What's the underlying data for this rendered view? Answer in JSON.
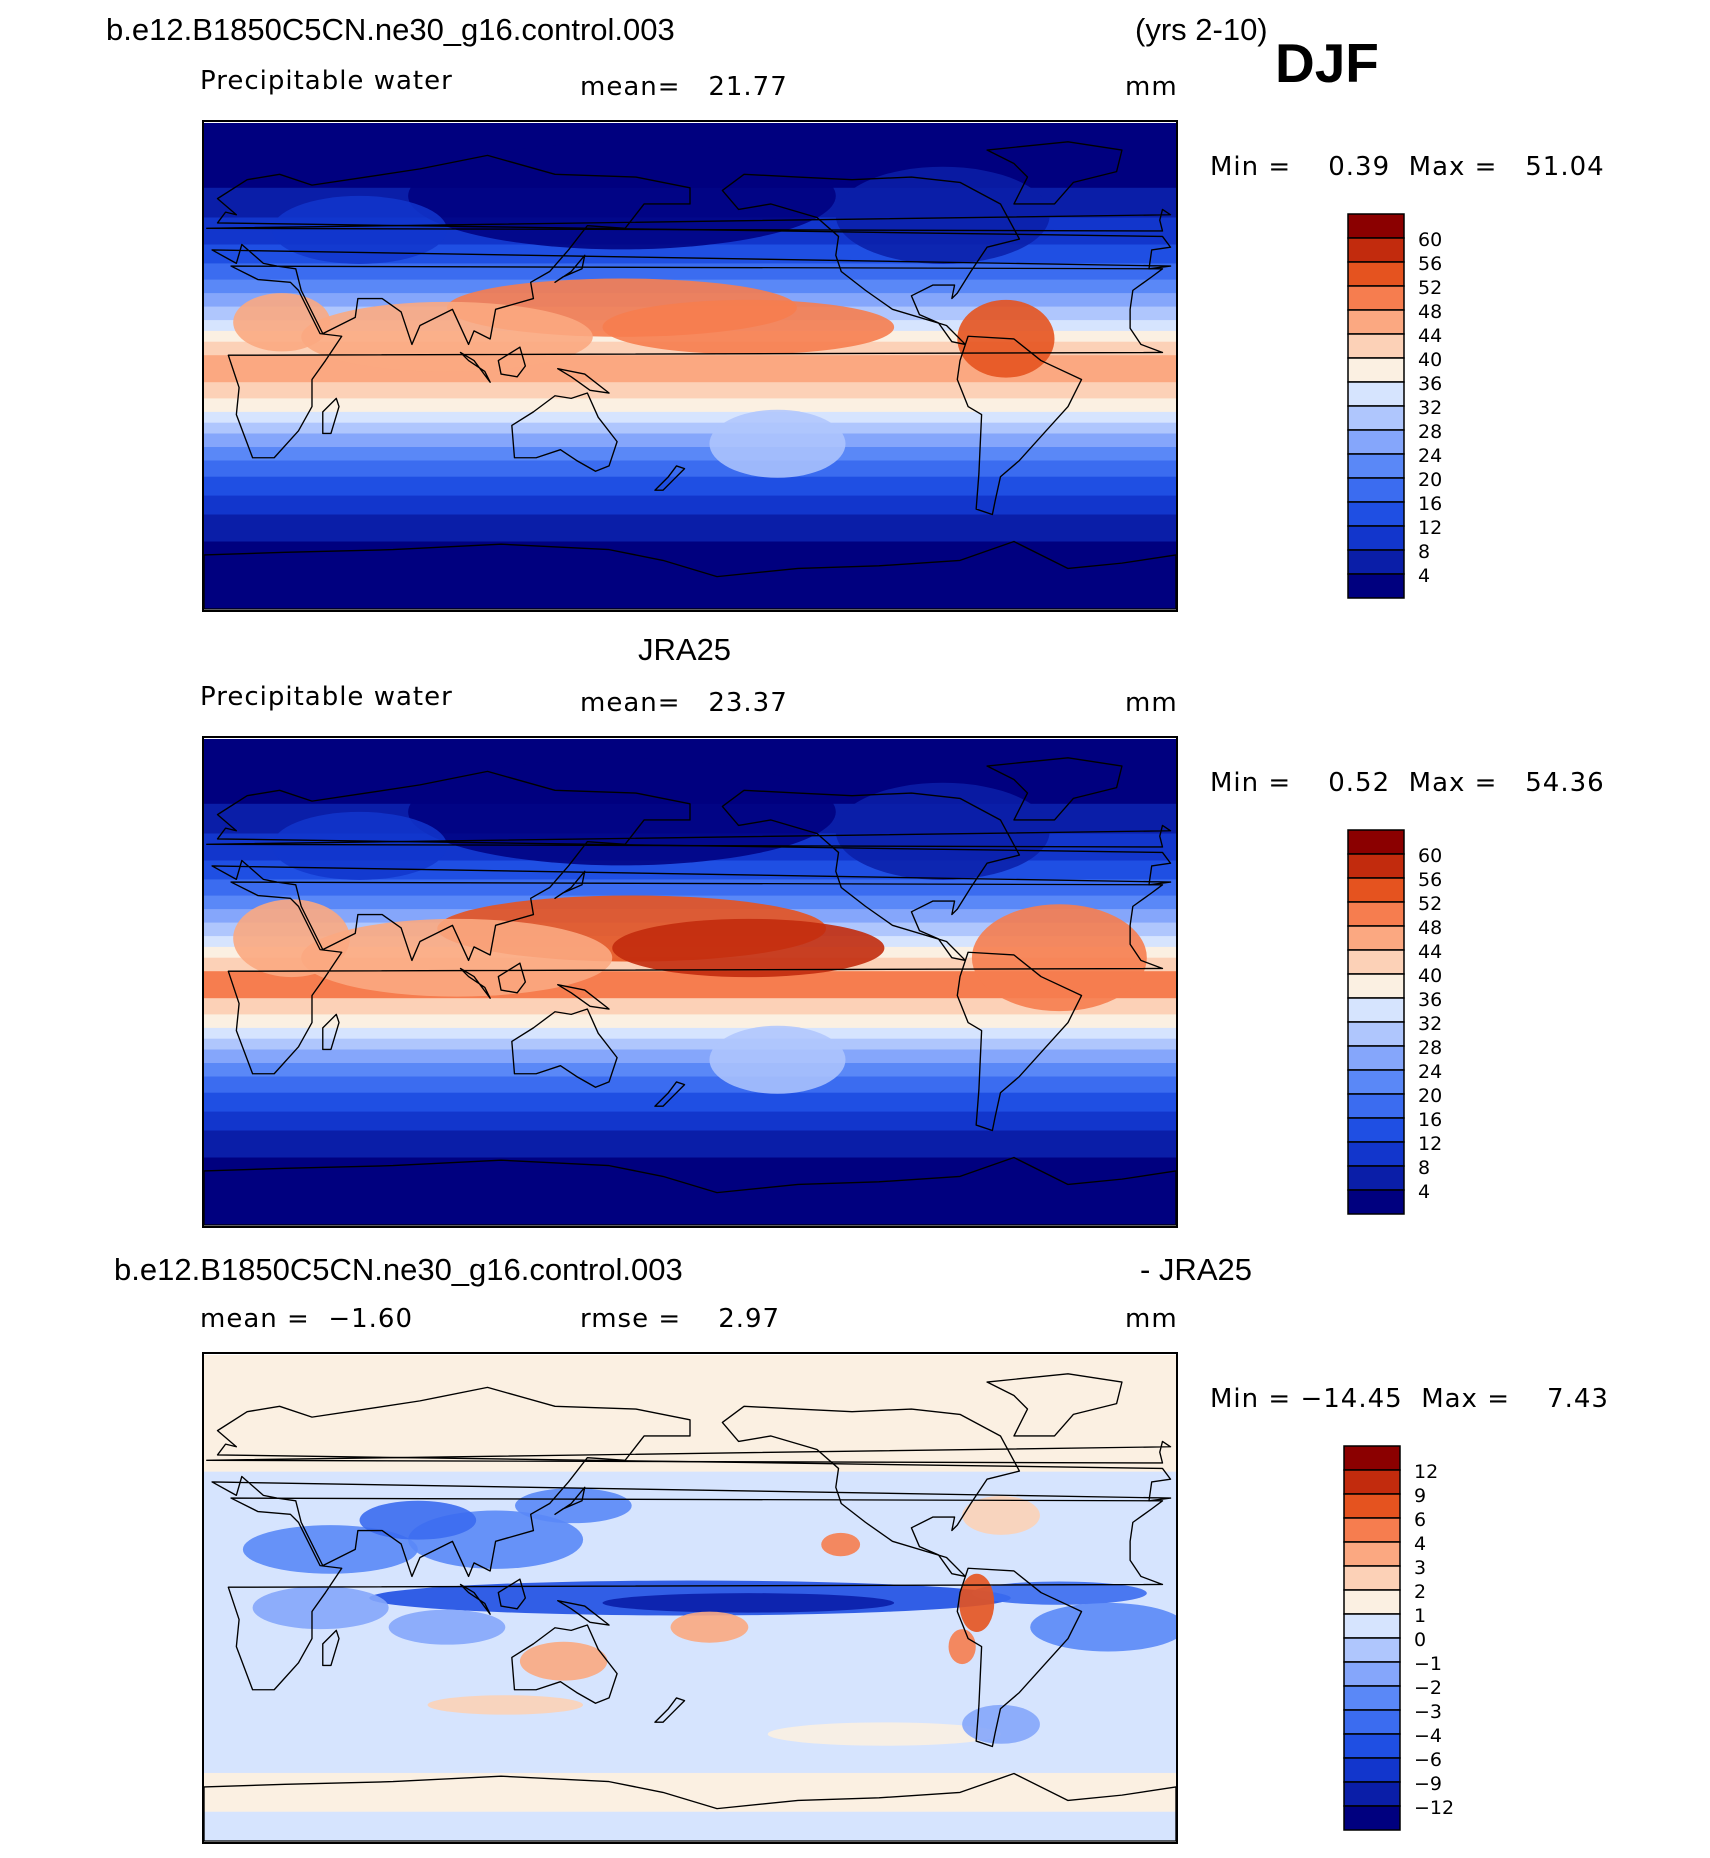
{
  "figure": {
    "case_name": "b.e12.B1850C5CN.ne30_g16.control.003",
    "years": "(yrs 2-10)",
    "season": "DJF",
    "colors": {
      "abs": [
        "#00007f",
        "#0a1ea8",
        "#1236cc",
        "#1f4fe3",
        "#3b6cf0",
        "#5a88f7",
        "#85a6fb",
        "#afc6fd",
        "#d6e4fe",
        "#fbf0e2",
        "#fcd1b7",
        "#fba881",
        "#f67d4f",
        "#e5531f",
        "#c22b0d",
        "#8b0000"
      ],
      "diff": [
        "#00007f",
        "#0a1ea8",
        "#1236cc",
        "#1f4fe3",
        "#3b6cf0",
        "#5a88f7",
        "#85a6fb",
        "#afc6fd",
        "#d6e4fe",
        "#fbf0e2",
        "#fcd1b7",
        "#fba881",
        "#f67d4f",
        "#e5531f",
        "#c22b0d",
        "#8b0000"
      ]
    }
  },
  "panels": [
    {
      "title_left": "b.e12.B1850C5CN.ne30_g16.control.003",
      "title_right": "(yrs 2-10)",
      "var_name": "Precipitable water",
      "stat": "mean=   21.77",
      "units": "mm",
      "minmax": "Min =    0.39  Max =   51.04",
      "cb_labels": [
        "60",
        "56",
        "52",
        "48",
        "44",
        "40",
        "36",
        "32",
        "28",
        "24",
        "20",
        "16",
        "12",
        "8",
        "4"
      ]
    },
    {
      "title_center": "JRA25",
      "var_name": "Precipitable water",
      "stat": "mean=   23.37",
      "units": "mm",
      "minmax": "Min =    0.52  Max =   54.36",
      "cb_labels": [
        "60",
        "56",
        "52",
        "48",
        "44",
        "40",
        "36",
        "32",
        "28",
        "24",
        "20",
        "16",
        "12",
        "8",
        "4"
      ]
    },
    {
      "title_left": "b.e12.B1850C5CN.ne30_g16.control.003",
      "title_right": "- JRA25",
      "stat_mean": "mean =  −1.60",
      "stat_rmse": "rmse =    2.97",
      "units": "mm",
      "minmax": "Min = −14.45  Max =    7.43",
      "cb_labels": [
        "12",
        "9",
        "6",
        "4",
        "3",
        "2",
        "1",
        "0",
        "−1",
        "−2",
        "−3",
        "−4",
        "−6",
        "−9",
        "−12"
      ]
    }
  ],
  "chart_data": [
    {
      "type": "heatmap",
      "title": "b.e12.B1850C5CN.ne30_g16.control.003 (yrs 2-10)",
      "subtitle": "Precipitable water",
      "units": "mm",
      "mean": 21.77,
      "min": 0.39,
      "max": 51.04,
      "contour_levels": [
        4,
        8,
        12,
        16,
        20,
        24,
        28,
        32,
        36,
        40,
        44,
        48,
        52,
        56,
        60
      ],
      "zonal_profile": {
        "lat": [
          90,
          75,
          60,
          45,
          30,
          15,
          0,
          -15,
          -30,
          -45,
          -60,
          -75,
          -90
        ],
        "value": [
          2,
          4,
          8,
          14,
          24,
          36,
          42,
          38,
          24,
          14,
          8,
          3,
          1
        ]
      }
    },
    {
      "type": "heatmap",
      "title": "JRA25",
      "subtitle": "Precipitable water",
      "units": "mm",
      "mean": 23.37,
      "min": 0.52,
      "max": 54.36,
      "contour_levels": [
        4,
        8,
        12,
        16,
        20,
        24,
        28,
        32,
        36,
        40,
        44,
        48,
        52,
        56,
        60
      ],
      "zonal_profile": {
        "lat": [
          90,
          75,
          60,
          45,
          30,
          15,
          0,
          -15,
          -30,
          -45,
          -60,
          -75,
          -90
        ],
        "value": [
          2,
          4,
          8,
          14,
          24,
          40,
          46,
          42,
          26,
          15,
          8,
          3,
          1
        ]
      }
    },
    {
      "type": "heatmap",
      "title": "b.e12.B1850C5CN.ne30_g16.control.003 - JRA25",
      "units": "mm",
      "mean": -1.6,
      "rmse": 2.97,
      "min": -14.45,
      "max": 7.43,
      "contour_levels": [
        -12,
        -9,
        -6,
        -4,
        -3,
        -2,
        -1,
        0,
        1,
        2,
        3,
        4,
        6,
        9,
        12
      ]
    }
  ]
}
